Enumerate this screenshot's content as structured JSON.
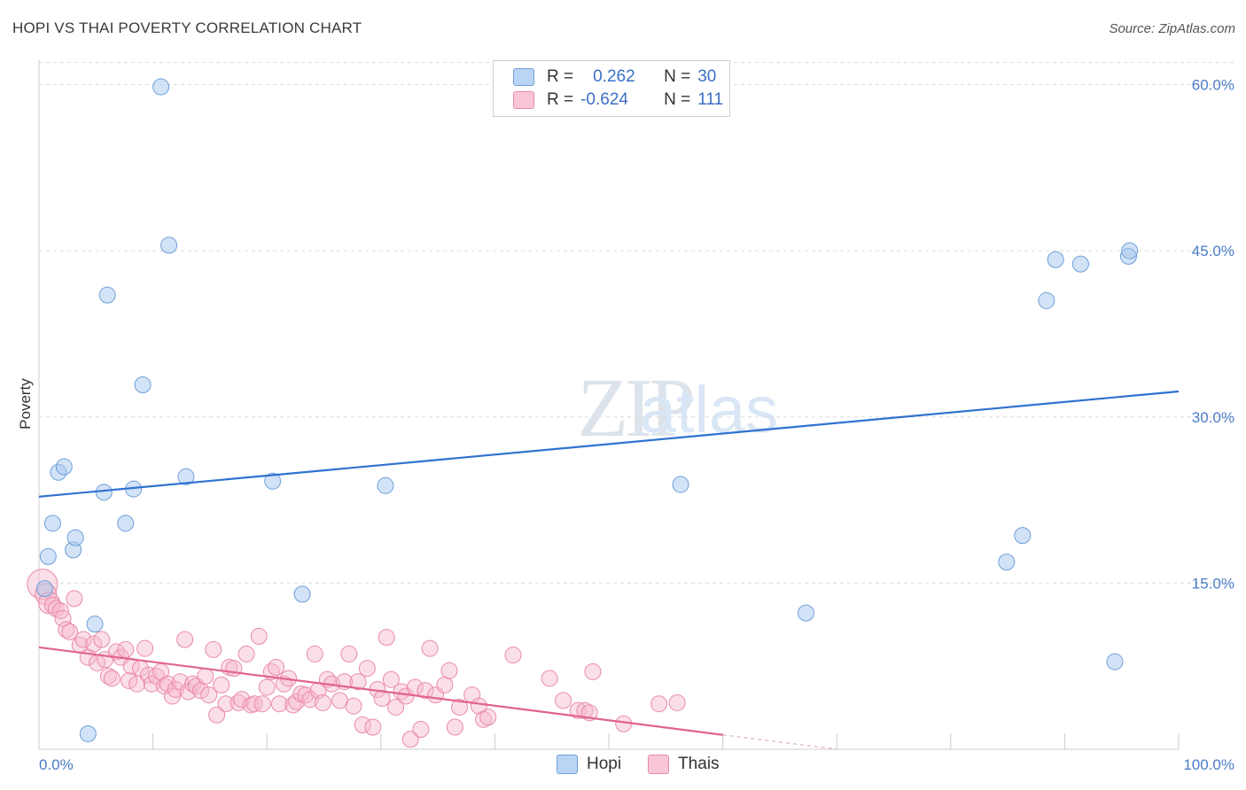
{
  "title": "HOPI VS THAI POVERTY CORRELATION CHART",
  "source": "Source: ZipAtlas.com",
  "watermark": {
    "zip": "ZIP",
    "atlas": "atlas"
  },
  "legend": {
    "rows": [
      {
        "r_label": "R =",
        "r_value": "0.262",
        "n_label": "N =",
        "n_value": "30"
      },
      {
        "r_label": "R =",
        "r_value": "-0.624",
        "n_label": "N =",
        "n_value": "111"
      }
    ]
  },
  "colors": {
    "hopi_fill": "#a8c8f0",
    "hopi_stroke": "#6f9fd8",
    "hopi_line": "#2f72d0",
    "thai_fill": "#f7b8cc",
    "thai_stroke": "#e98aa8",
    "thai_line": "#e0648e",
    "tick_text": "#4a7cc7"
  },
  "chart_data": {
    "type": "scatter",
    "title": "HOPI VS THAI POVERTY CORRELATION CHART",
    "xlabel": "",
    "ylabel": "Poverty",
    "xlim": [
      0,
      100
    ],
    "ylim": [
      0,
      63
    ],
    "x_tick_labels": [
      "0.0%",
      "100.0%"
    ],
    "y_ticks": [
      15,
      30,
      45,
      60
    ],
    "y_tick_labels": [
      "15.0%",
      "30.0%",
      "45.0%",
      "60.0%"
    ],
    "grid": "horizontal dashed",
    "legend_position": "top-center and bottom",
    "series": [
      {
        "name": "Hopi",
        "r": 0.262,
        "n": 30,
        "trend": {
          "x": [
            0,
            100
          ],
          "y": [
            22.8,
            32.3
          ]
        },
        "points": [
          [
            0.5,
            14.5
          ],
          [
            0.8,
            17.4
          ],
          [
            1.2,
            20.4
          ],
          [
            1.7,
            25.0
          ],
          [
            2.2,
            25.5
          ],
          [
            3.0,
            18.0
          ],
          [
            3.2,
            19.1
          ],
          [
            4.3,
            1.4
          ],
          [
            4.9,
            11.3
          ],
          [
            5.7,
            23.2
          ],
          [
            6.0,
            41.0
          ],
          [
            7.6,
            20.4
          ],
          [
            8.3,
            23.5
          ],
          [
            9.1,
            32.9
          ],
          [
            10.7,
            59.8
          ],
          [
            11.4,
            45.5
          ],
          [
            12.9,
            24.6
          ],
          [
            20.5,
            24.2
          ],
          [
            23.1,
            14.0
          ],
          [
            30.4,
            23.8
          ],
          [
            56.3,
            23.9
          ],
          [
            67.3,
            12.3
          ],
          [
            84.9,
            16.9
          ],
          [
            86.3,
            19.3
          ],
          [
            88.4,
            40.5
          ],
          [
            89.2,
            44.2
          ],
          [
            91.4,
            43.8
          ],
          [
            94.4,
            7.9
          ],
          [
            95.6,
            44.5
          ],
          [
            95.7,
            45.0
          ]
        ]
      },
      {
        "name": "Thais",
        "r": -0.624,
        "n": 111,
        "trend": {
          "x": [
            0,
            60
          ],
          "y": [
            9.2,
            1.3
          ]
        },
        "trend_dashed": {
          "x": [
            60,
            70
          ],
          "y": [
            1.3,
            0.0
          ]
        },
        "points": [
          [
            0.3,
            14.9
          ],
          [
            0.6,
            14.0
          ],
          [
            0.9,
            13.2
          ],
          [
            1.2,
            13.0
          ],
          [
            1.5,
            12.7
          ],
          [
            1.9,
            12.5
          ],
          [
            2.1,
            11.8
          ],
          [
            2.4,
            10.8
          ],
          [
            2.7,
            10.6
          ],
          [
            3.1,
            13.6
          ],
          [
            3.6,
            9.4
          ],
          [
            3.9,
            9.9
          ],
          [
            4.3,
            8.3
          ],
          [
            4.8,
            9.5
          ],
          [
            5.1,
            7.8
          ],
          [
            5.5,
            9.9
          ],
          [
            5.8,
            8.1
          ],
          [
            6.1,
            6.6
          ],
          [
            6.4,
            6.4
          ],
          [
            6.8,
            8.8
          ],
          [
            7.2,
            8.3
          ],
          [
            7.6,
            9.0
          ],
          [
            7.9,
            6.2
          ],
          [
            8.1,
            7.5
          ],
          [
            8.6,
            5.9
          ],
          [
            8.9,
            7.3
          ],
          [
            9.3,
            9.1
          ],
          [
            9.6,
            6.7
          ],
          [
            9.9,
            5.9
          ],
          [
            10.3,
            6.6
          ],
          [
            10.7,
            7.0
          ],
          [
            11.0,
            5.7
          ],
          [
            11.3,
            5.9
          ],
          [
            11.7,
            4.8
          ],
          [
            12.0,
            5.4
          ],
          [
            12.4,
            6.1
          ],
          [
            12.8,
            9.9
          ],
          [
            13.1,
            5.2
          ],
          [
            13.5,
            5.9
          ],
          [
            13.8,
            5.7
          ],
          [
            14.2,
            5.3
          ],
          [
            14.6,
            6.6
          ],
          [
            14.9,
            4.9
          ],
          [
            15.3,
            9.0
          ],
          [
            15.6,
            3.1
          ],
          [
            16.0,
            5.8
          ],
          [
            16.4,
            4.1
          ],
          [
            16.7,
            7.4
          ],
          [
            17.1,
            7.3
          ],
          [
            17.5,
            4.2
          ],
          [
            17.8,
            4.5
          ],
          [
            18.2,
            8.6
          ],
          [
            18.6,
            4.0
          ],
          [
            18.9,
            4.1
          ],
          [
            19.3,
            10.2
          ],
          [
            19.6,
            4.1
          ],
          [
            20.0,
            5.6
          ],
          [
            20.4,
            7.0
          ],
          [
            20.8,
            7.4
          ],
          [
            21.1,
            4.1
          ],
          [
            21.5,
            5.9
          ],
          [
            21.9,
            6.4
          ],
          [
            22.3,
            4.0
          ],
          [
            22.6,
            4.3
          ],
          [
            23.0,
            5.0
          ],
          [
            23.4,
            4.9
          ],
          [
            23.8,
            4.5
          ],
          [
            24.2,
            8.6
          ],
          [
            24.5,
            5.3
          ],
          [
            24.9,
            4.2
          ],
          [
            25.3,
            6.3
          ],
          [
            25.7,
            5.9
          ],
          [
            26.4,
            4.4
          ],
          [
            26.8,
            6.1
          ],
          [
            27.2,
            8.6
          ],
          [
            27.6,
            3.9
          ],
          [
            28.0,
            6.1
          ],
          [
            28.4,
            2.2
          ],
          [
            28.8,
            7.3
          ],
          [
            29.3,
            2.0
          ],
          [
            29.7,
            5.4
          ],
          [
            30.1,
            4.6
          ],
          [
            30.5,
            10.1
          ],
          [
            30.9,
            6.3
          ],
          [
            31.3,
            3.8
          ],
          [
            31.8,
            5.2
          ],
          [
            32.2,
            4.8
          ],
          [
            32.6,
            0.9
          ],
          [
            33.0,
            5.6
          ],
          [
            33.5,
            1.8
          ],
          [
            33.9,
            5.3
          ],
          [
            34.3,
            9.1
          ],
          [
            34.8,
            4.9
          ],
          [
            35.6,
            5.8
          ],
          [
            36.0,
            7.1
          ],
          [
            36.5,
            2.0
          ],
          [
            36.9,
            3.8
          ],
          [
            38.0,
            4.9
          ],
          [
            38.6,
            3.9
          ],
          [
            39.0,
            2.7
          ],
          [
            39.4,
            2.9
          ],
          [
            41.6,
            8.5
          ],
          [
            44.8,
            6.4
          ],
          [
            46.0,
            4.4
          ],
          [
            47.3,
            3.5
          ],
          [
            47.9,
            3.5
          ],
          [
            48.3,
            3.3
          ],
          [
            48.6,
            7.0
          ],
          [
            51.3,
            2.3
          ],
          [
            54.4,
            4.1
          ],
          [
            56.0,
            4.2
          ]
        ]
      }
    ]
  },
  "bottom_legend": {
    "items": [
      "Hopi",
      "Thais"
    ]
  }
}
